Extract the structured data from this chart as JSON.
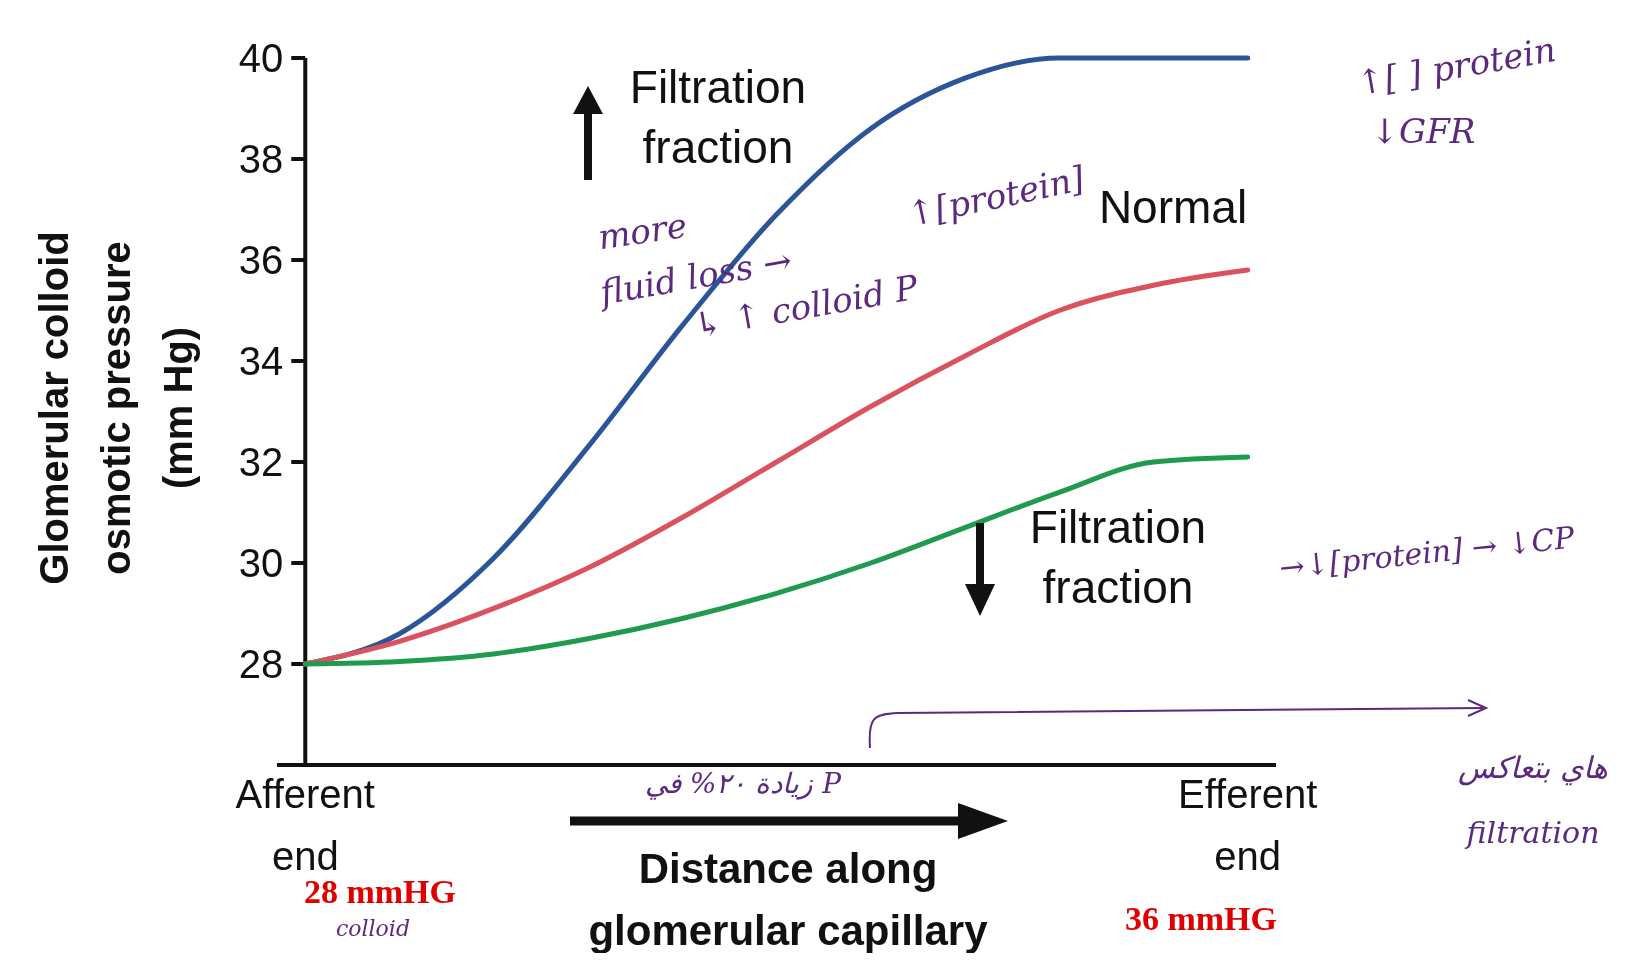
{
  "chart_data": {
    "type": "line",
    "ylabel": "Glomerular colloid osmotic pressure (mm Hg)",
    "xlabel": "Distance along glomerular capillary",
    "categories": [
      "Afferent end",
      null,
      null,
      null,
      null,
      null,
      null,
      null,
      null,
      null,
      "Efferent end"
    ],
    "ylim": [
      26,
      40
    ],
    "yticks": [
      28,
      30,
      32,
      34,
      36,
      38,
      40
    ],
    "grid": false,
    "line_style": "solid",
    "series": [
      {
        "name": "Filtration fraction",
        "color": "#2b5597",
        "values": [
          28.0,
          28.6,
          30.1,
          32.3,
          34.7,
          36.9,
          38.6,
          39.6,
          40.0,
          40.0,
          40.0
        ]
      },
      {
        "name": "Normal",
        "color": "#d9525e",
        "values": [
          28.0,
          28.45,
          29.1,
          29.9,
          30.9,
          32.0,
          33.1,
          34.1,
          35.0,
          35.5,
          35.8
        ]
      },
      {
        "name": "Filtration fraction",
        "color": "#1f9a4e",
        "values": [
          28.0,
          28.05,
          28.2,
          28.5,
          28.9,
          29.4,
          30.0,
          30.7,
          31.4,
          32.0,
          32.1
        ]
      }
    ],
    "annotations": [
      "28 mmHG",
      "colloid",
      "36 mmHG",
      "more",
      "fluid loss →",
      "↑[protein]",
      "↳ ↑ colloid P",
      "↑[ ] protein",
      "↓GFR",
      "→↓[protein] → ↓CP",
      "زيادة ۲۰% في P",
      "هاي بتعاكس",
      "filtration"
    ]
  }
}
